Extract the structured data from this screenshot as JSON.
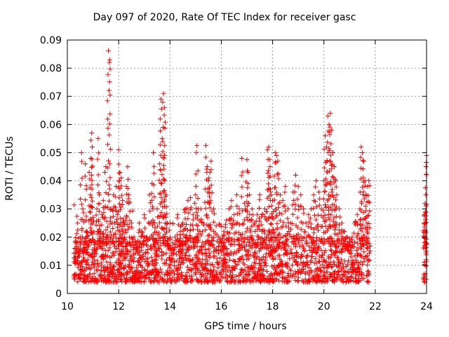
{
  "chart_data": {
    "type": "scatter",
    "title": "Day 097 of 2020, Rate Of TEC Index for receiver gasc",
    "xlabel": "GPS time / hours",
    "ylabel": "ROTI / TECUs",
    "xlim": [
      10,
      24
    ],
    "ylim": [
      0,
      0.09
    ],
    "xticks": [
      10,
      12,
      14,
      16,
      18,
      20,
      22,
      24
    ],
    "yticks": [
      0,
      0.01,
      0.02,
      0.03,
      0.04,
      0.05,
      0.06,
      0.07,
      0.08,
      0.09
    ],
    "xtick_labels": [
      "10",
      "12",
      "14",
      "16",
      "18",
      "20",
      "22",
      "24"
    ],
    "ytick_labels": [
      "0",
      "0.01",
      "0.02",
      "0.03",
      "0.04",
      "0.05",
      "0.06",
      "0.07",
      "0.08",
      "0.09"
    ],
    "grid": true,
    "marker": "+",
    "color": "#ff0000",
    "points": [
      [
        10.3,
        0.012
      ],
      [
        10.35,
        0.018
      ],
      [
        10.4,
        0.025
      ],
      [
        10.45,
        0.014
      ],
      [
        10.5,
        0.02
      ],
      [
        10.55,
        0.05
      ],
      [
        10.6,
        0.03
      ],
      [
        10.65,
        0.016
      ],
      [
        10.7,
        0.046
      ],
      [
        10.75,
        0.022
      ],
      [
        10.8,
        0.012
      ],
      [
        10.85,
        0.043
      ],
      [
        10.9,
        0.035
      ],
      [
        10.95,
        0.057
      ],
      [
        10.97,
        0.052
      ],
      [
        11.0,
        0.027
      ],
      [
        11.05,
        0.018
      ],
      [
        11.1,
        0.015
      ],
      [
        11.15,
        0.03
      ],
      [
        11.2,
        0.055
      ],
      [
        11.25,
        0.035
      ],
      [
        11.3,
        0.022
      ],
      [
        11.35,
        0.028
      ],
      [
        11.4,
        0.033
      ],
      [
        11.5,
        0.045
      ],
      [
        11.55,
        0.02
      ],
      [
        11.6,
        0.0862
      ],
      [
        11.65,
        0.083
      ],
      [
        11.7,
        0.03
      ],
      [
        11.75,
        0.025
      ],
      [
        11.8,
        0.035
      ],
      [
        11.9,
        0.038
      ],
      [
        11.95,
        0.028
      ],
      [
        12.0,
        0.051
      ],
      [
        12.05,
        0.043
      ],
      [
        12.1,
        0.041
      ],
      [
        12.15,
        0.033
      ],
      [
        12.2,
        0.025
      ],
      [
        12.3,
        0.038
      ],
      [
        12.35,
        0.045
      ],
      [
        12.4,
        0.035
      ],
      [
        12.5,
        0.025
      ],
      [
        12.6,
        0.02
      ],
      [
        12.7,
        0.018
      ],
      [
        12.8,
        0.025
      ],
      [
        12.9,
        0.022
      ],
      [
        13.0,
        0.028
      ],
      [
        13.1,
        0.02
      ],
      [
        13.2,
        0.035
      ],
      [
        13.3,
        0.039
      ],
      [
        13.35,
        0.05
      ],
      [
        13.4,
        0.025
      ],
      [
        13.5,
        0.03
      ],
      [
        13.6,
        0.046
      ],
      [
        13.65,
        0.069
      ],
      [
        13.7,
        0.055
      ],
      [
        13.75,
        0.071
      ],
      [
        13.78,
        0.066
      ],
      [
        13.8,
        0.04
      ],
      [
        13.85,
        0.035
      ],
      [
        13.9,
        0.025
      ],
      [
        14.0,
        0.025
      ],
      [
        14.1,
        0.018
      ],
      [
        14.2,
        0.02
      ],
      [
        14.3,
        0.028
      ],
      [
        14.4,
        0.022
      ],
      [
        14.5,
        0.025
      ],
      [
        14.6,
        0.03
      ],
      [
        14.7,
        0.033
      ],
      [
        14.8,
        0.034
      ],
      [
        14.9,
        0.028
      ],
      [
        15.0,
        0.035
      ],
      [
        15.05,
        0.0525
      ],
      [
        15.1,
        0.03
      ],
      [
        15.2,
        0.03
      ],
      [
        15.3,
        0.025
      ],
      [
        15.4,
        0.0525
      ],
      [
        15.45,
        0.045
      ],
      [
        15.5,
        0.04
      ],
      [
        15.55,
        0.043
      ],
      [
        15.6,
        0.047
      ],
      [
        15.7,
        0.03
      ],
      [
        15.8,
        0.024
      ],
      [
        15.9,
        0.02
      ],
      [
        16.0,
        0.018
      ],
      [
        16.1,
        0.022
      ],
      [
        16.2,
        0.026
      ],
      [
        16.3,
        0.03
      ],
      [
        16.4,
        0.033
      ],
      [
        16.5,
        0.028
      ],
      [
        16.6,
        0.035
      ],
      [
        16.7,
        0.03
      ],
      [
        16.8,
        0.048
      ],
      [
        16.9,
        0.032
      ],
      [
        17.0,
        0.0475
      ],
      [
        17.05,
        0.043
      ],
      [
        17.1,
        0.035
      ],
      [
        17.2,
        0.03
      ],
      [
        17.3,
        0.025
      ],
      [
        17.4,
        0.028
      ],
      [
        17.5,
        0.035
      ],
      [
        17.6,
        0.028
      ],
      [
        17.7,
        0.03
      ],
      [
        17.8,
        0.051
      ],
      [
        17.85,
        0.052
      ],
      [
        17.9,
        0.045
      ],
      [
        17.95,
        0.035
      ],
      [
        18.0,
        0.033
      ],
      [
        18.1,
        0.05
      ],
      [
        18.15,
        0.049
      ],
      [
        18.2,
        0.047
      ],
      [
        18.3,
        0.035
      ],
      [
        18.4,
        0.033
      ],
      [
        18.5,
        0.038
      ],
      [
        18.6,
        0.03
      ],
      [
        18.7,
        0.025
      ],
      [
        18.8,
        0.036
      ],
      [
        18.9,
        0.042
      ],
      [
        19.0,
        0.038
      ],
      [
        19.1,
        0.035
      ],
      [
        19.2,
        0.03
      ],
      [
        19.3,
        0.025
      ],
      [
        19.4,
        0.028
      ],
      [
        19.5,
        0.03
      ],
      [
        19.6,
        0.035
      ],
      [
        19.7,
        0.04
      ],
      [
        19.8,
        0.036
      ],
      [
        19.9,
        0.03
      ],
      [
        20.0,
        0.04
      ],
      [
        20.05,
        0.056
      ],
      [
        20.1,
        0.052
      ],
      [
        20.15,
        0.063
      ],
      [
        20.2,
        0.06
      ],
      [
        20.25,
        0.064
      ],
      [
        20.3,
        0.058
      ],
      [
        20.35,
        0.05
      ],
      [
        20.4,
        0.045
      ],
      [
        20.45,
        0.04
      ],
      [
        20.5,
        0.035
      ],
      [
        20.6,
        0.03
      ],
      [
        20.7,
        0.025
      ],
      [
        20.8,
        0.022
      ],
      [
        20.9,
        0.02
      ],
      [
        21.0,
        0.018
      ],
      [
        21.1,
        0.02
      ],
      [
        21.2,
        0.025
      ],
      [
        21.3,
        0.028
      ],
      [
        21.4,
        0.03
      ],
      [
        21.45,
        0.052
      ],
      [
        21.5,
        0.05
      ],
      [
        21.55,
        0.047
      ],
      [
        21.6,
        0.04
      ],
      [
        21.65,
        0.035
      ],
      [
        21.7,
        0.038
      ],
      [
        21.75,
        0.04
      ],
      [
        23.9,
        0.025
      ],
      [
        23.92,
        0.028
      ],
      [
        23.94,
        0.032
      ],
      [
        23.96,
        0.02
      ],
      [
        23.98,
        0.045
      ],
      [
        24.0,
        0.049
      ],
      [
        24.0,
        0.015
      ],
      [
        23.97,
        0.01
      ],
      [
        23.95,
        0.007
      ]
    ],
    "band": {
      "x_ranges": [
        [
          10.25,
          21.8
        ],
        [
          23.88,
          24.0
        ]
      ],
      "y_min": 0.004,
      "y_max": 0.02,
      "density": 1800
    }
  }
}
